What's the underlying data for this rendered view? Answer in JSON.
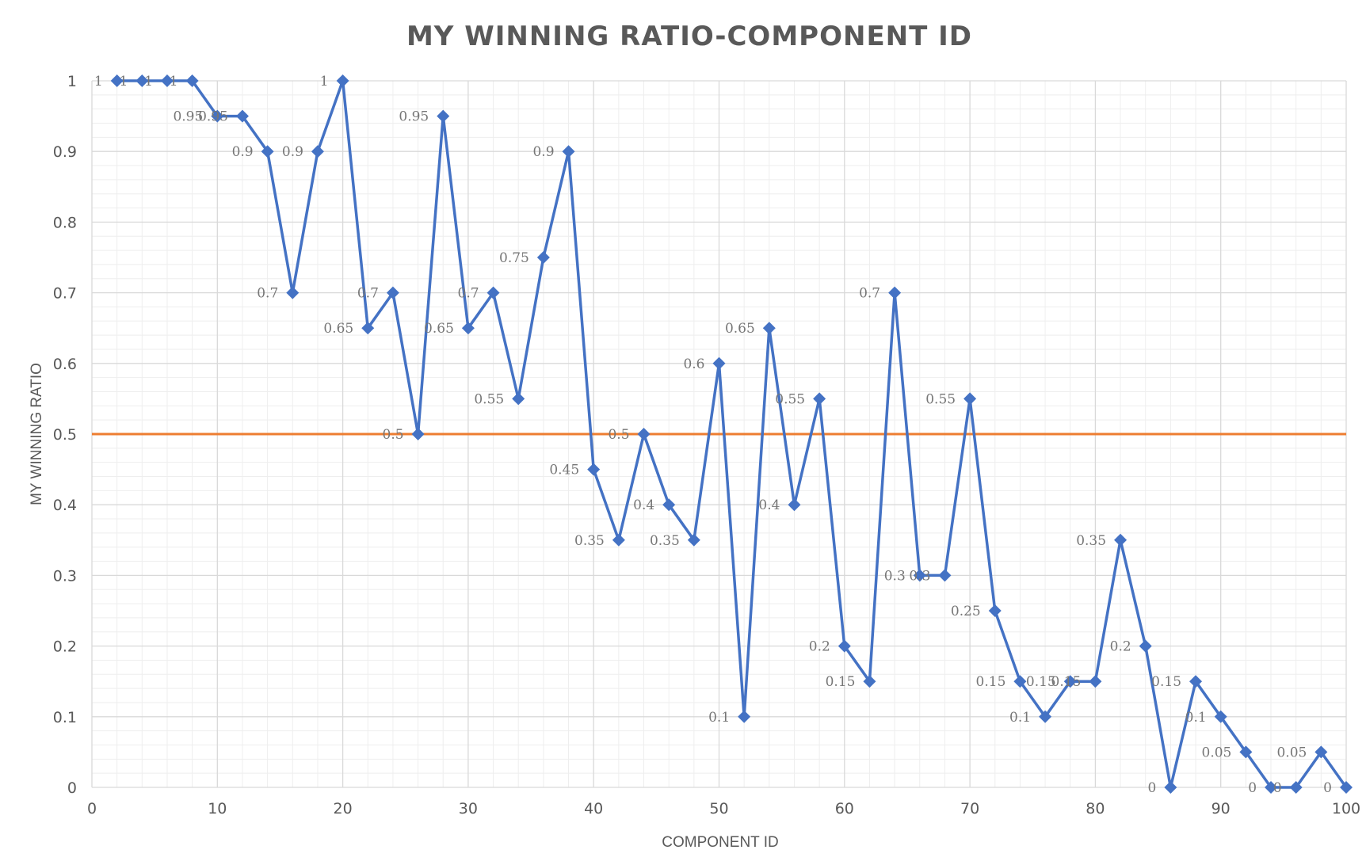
{
  "chart_data": {
    "type": "line",
    "title": "MY WINNING RATIO-COMPONENT ID",
    "xlabel": "COMPONENT ID",
    "ylabel": "MY WINNING RATIO",
    "xlim": [
      0,
      100
    ],
    "ylim": [
      0,
      1
    ],
    "x_ticks": [
      0,
      10,
      20,
      30,
      40,
      50,
      60,
      70,
      80,
      90,
      100
    ],
    "x_tick_labels": [
      "0",
      "10",
      "20",
      "30",
      "40",
      "50",
      "60",
      "70",
      "80",
      "90",
      "100"
    ],
    "y_ticks": [
      0,
      0.1,
      0.2,
      0.3,
      0.4,
      0.5,
      0.6,
      0.7,
      0.8,
      0.9,
      1
    ],
    "y_tick_labels": [
      "0",
      "0.1",
      "0.2",
      "0.3",
      "0.4",
      "0.5",
      "0.6",
      "0.7",
      "0.8",
      "0.9",
      "1"
    ],
    "grid": true,
    "minor_grid": true,
    "legend": "none",
    "colors": {
      "series": "#4472C4",
      "reference": "#ED7D31",
      "grid_major": "#D9D9D9",
      "grid_minor": "#EEEEEE"
    },
    "series": [
      {
        "marker": "diamond",
        "x": [
          2,
          4,
          6,
          8,
          10,
          12,
          14,
          16,
          18,
          20,
          22,
          24,
          26,
          28,
          30,
          32,
          34,
          36,
          38,
          40,
          42,
          44,
          46,
          48,
          50,
          52,
          54,
          56,
          58,
          60,
          62,
          64,
          66,
          68,
          70,
          72,
          74,
          76,
          78,
          80,
          82,
          84,
          86,
          88,
          90,
          92,
          94,
          96,
          98,
          100
        ],
        "y": [
          1,
          1,
          1,
          1,
          0.95,
          0.95,
          0.9,
          0.7,
          0.9,
          1,
          0.65,
          0.7,
          0.5,
          0.95,
          0.65,
          0.7,
          0.55,
          0.75,
          0.9,
          0.45,
          0.35,
          0.5,
          0.4,
          0.35,
          0.6,
          0.1,
          0.65,
          0.4,
          0.55,
          0.2,
          0.15,
          0.7,
          0.3,
          0.3,
          0.55,
          0.25,
          0.15,
          0.1,
          0.15,
          0.15,
          0.35,
          0.2,
          0,
          0.15,
          0.1,
          0.05,
          0,
          0,
          0.05,
          0
        ],
        "data_labels": [
          "1",
          "1",
          "1",
          "1",
          "0.95",
          "0.95",
          "0.9",
          "0.7",
          "0.9",
          "1",
          "0.65",
          "0.7",
          "0.5",
          "0.95",
          "0.65",
          "0.7",
          "0.55",
          "0.75",
          "0.9",
          "0.45",
          "0.35",
          "0.5",
          "0.4",
          "0.35",
          "0.6",
          "0.1",
          "0.65",
          "0.4",
          "0.55",
          "0.2",
          "0.15",
          "0.7",
          "0.3",
          "0.3",
          "0.55",
          "0.25",
          "0.15",
          "0.1",
          "0.15",
          "0.15",
          "0.35",
          "0.2",
          "0",
          "0.15",
          "0.1",
          "0.05",
          "0",
          "0",
          "0.05",
          "0"
        ]
      },
      {
        "x": [
          0,
          100
        ],
        "y": [
          0.5,
          0.5
        ]
      }
    ]
  }
}
